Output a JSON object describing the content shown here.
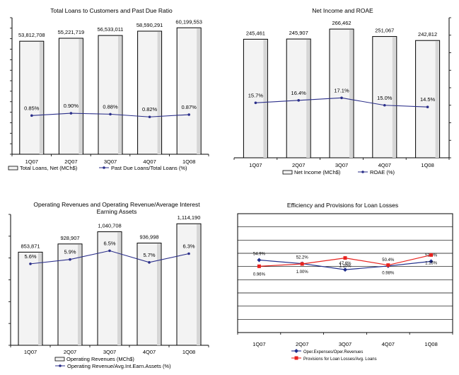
{
  "chart_data": [
    {
      "type": "bar",
      "title": "Total Loans to Customers and Past Due Ratio",
      "categories": [
        "1Q07",
        "2Q07",
        "3Q07",
        "4Q07",
        "1Q08"
      ],
      "series": [
        {
          "name": "Total Loans, Net (MCh$)",
          "type": "bar",
          "values": [
            53812708,
            55221719,
            56533011,
            58590291,
            60199553
          ],
          "labels": [
            "53,812,708",
            "55,221,719",
            "56,533,011",
            "58,590,291",
            "60,199,553"
          ]
        },
        {
          "name": "Past Due Loans/Total Loans (%)",
          "type": "line",
          "axis": "secondary",
          "values": [
            0.85,
            0.9,
            0.88,
            0.82,
            0.87
          ],
          "labels": [
            "0.85%",
            "0.90%",
            "0.88%",
            "0.82%",
            "0.87%"
          ]
        }
      ],
      "ylim": [
        0,
        65000000
      ],
      "y2lim": [
        0,
        3.0
      ],
      "grid": false,
      "legend": "bottom"
    },
    {
      "type": "bar",
      "title": "Net Income and ROAE",
      "categories": [
        "1Q07",
        "2Q07",
        "3Q07",
        "4Q07",
        "1Q08"
      ],
      "series": [
        {
          "name": "Net Income (MCh$)",
          "type": "bar",
          "values": [
            245461,
            245907,
            266462,
            251067,
            242812
          ],
          "labels": [
            "245,461",
            "245,907",
            "266,462",
            "251,067",
            "242,812"
          ]
        },
        {
          "name": "ROAE (%)",
          "type": "line",
          "axis": "secondary",
          "values": [
            15.7,
            16.4,
            17.1,
            15.0,
            14.5
          ],
          "labels": [
            "15.7%",
            "16.4%",
            "17.1%",
            "15.0%",
            "14.5%"
          ]
        }
      ],
      "ylim": [
        0,
        290000
      ],
      "y2lim": [
        0,
        40
      ],
      "grid": false,
      "legend": "bottom"
    },
    {
      "type": "bar",
      "title": "Operating Revenues and Operating Revenue/Average Interest Earning Assets",
      "categories": [
        "1Q07",
        "2Q07",
        "3Q07",
        "4Q07",
        "1Q08"
      ],
      "series": [
        {
          "name": "Operating Revenues (MCh$)",
          "type": "bar",
          "values": [
            853871,
            928907,
            1040708,
            936998,
            1114190
          ],
          "labels": [
            "853,871",
            "928,907",
            "1,040,708",
            "936,998",
            "1,114,190"
          ]
        },
        {
          "name": "Operating Revenue/Avg.Int.Earn.Assets (%)",
          "type": "line",
          "axis": "secondary",
          "values": [
            5.6,
            5.9,
            6.5,
            5.7,
            6.3
          ],
          "labels": [
            "5.6%",
            "5.9%",
            "6.5%",
            "5.7%",
            "6.3%"
          ]
        }
      ],
      "ylim": [
        0,
        1200000
      ],
      "y2lim": [
        0,
        9
      ],
      "grid": false,
      "legend": "bottom"
    },
    {
      "type": "line",
      "title": "Efficiency and Provisions for Loan Losses",
      "categories": [
        "1Q07",
        "2Q07",
        "3Q07",
        "4Q07",
        "1Q08"
      ],
      "series": [
        {
          "name": "Oper.Expenses/Oper.Revenues",
          "color": "#1f2e8c",
          "values": [
            54.9,
            52.2,
            47.6,
            50.4,
            53.9
          ],
          "labels": [
            "54.9%",
            "52.2%",
            "47.6%",
            "50.4%",
            "53.9%"
          ]
        },
        {
          "name": "Provisions for Loan Losses/Avg. Loans",
          "color": "#e8231f",
          "axis": "secondary",
          "values": [
            0.96,
            1.0,
            1.1,
            0.98,
            1.15
          ],
          "labels": [
            "0.96%",
            "1.00%",
            "1.10%",
            "0.98%",
            "1.15%"
          ]
        }
      ],
      "grid": true,
      "legend": "bottom"
    }
  ],
  "colors": {
    "line": "#2b2f8a",
    "provisions": "#e8231f",
    "bar_fill": "#f4f4f4",
    "grid": "#000000"
  }
}
